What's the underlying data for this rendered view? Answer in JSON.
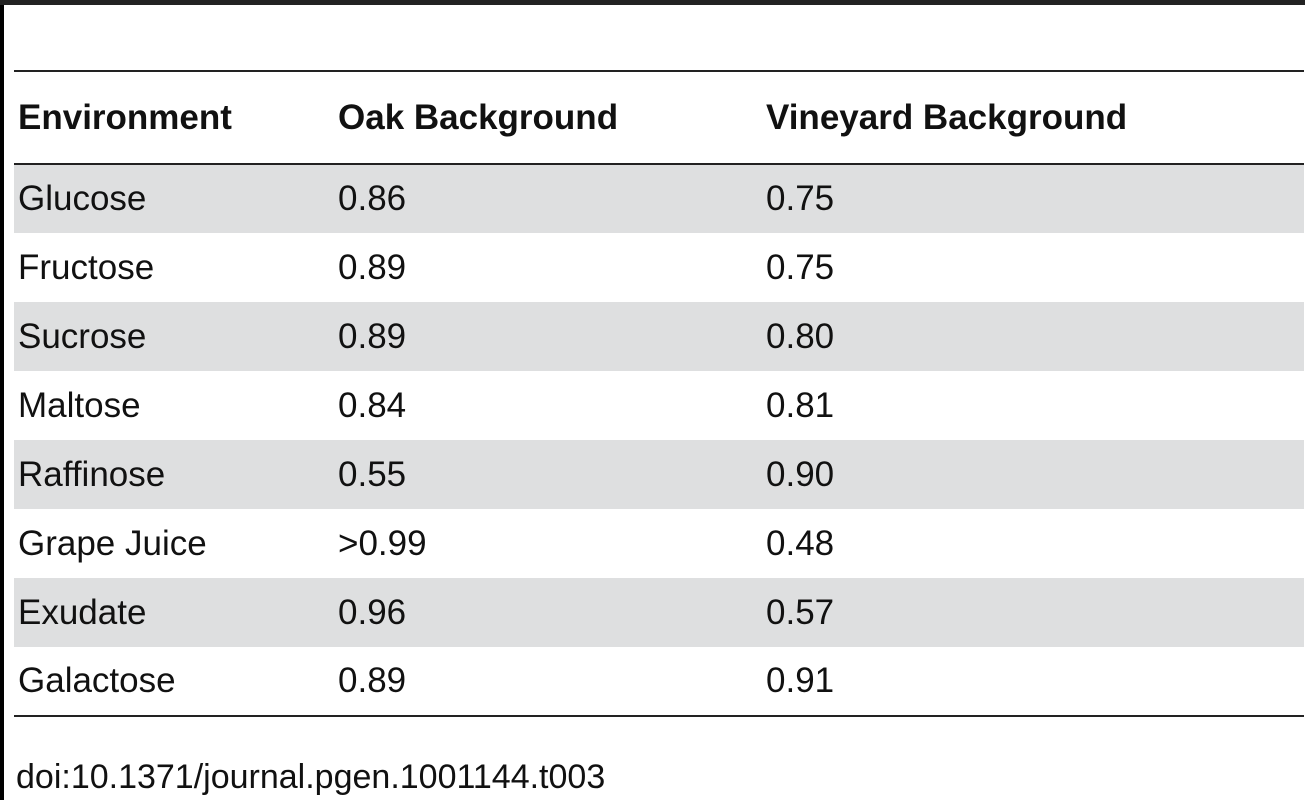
{
  "table": {
    "headers": [
      "Environment",
      "Oak Background",
      "Vineyard Background"
    ],
    "rows": [
      [
        "Glucose",
        "0.86",
        "0.75"
      ],
      [
        "Fructose",
        "0.89",
        "0.75"
      ],
      [
        "Sucrose",
        "0.89",
        "0.80"
      ],
      [
        "Maltose",
        "0.84",
        "0.81"
      ],
      [
        "Raffinose",
        "0.55",
        "0.90"
      ],
      [
        "Grape Juice",
        ">0.99",
        "0.48"
      ],
      [
        "Exudate",
        "0.96",
        "0.57"
      ],
      [
        "Galactose",
        "0.89",
        "0.91"
      ]
    ],
    "row_shading_color": "#dedfe0"
  },
  "footer": {
    "doi": "doi:10.1371/journal.pgen.1001144.t003"
  }
}
